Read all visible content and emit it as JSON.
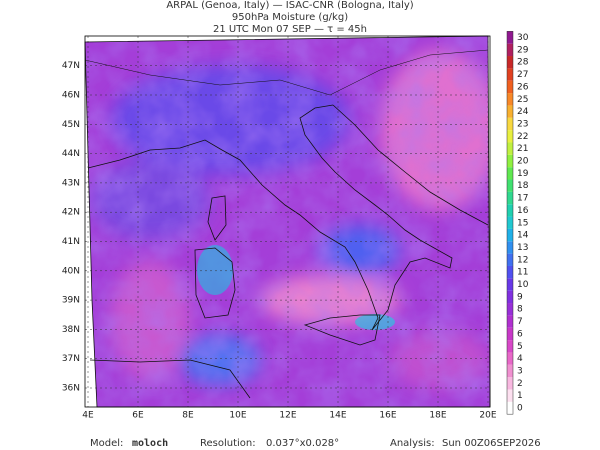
{
  "header": {
    "line1": "ARPAL (Genoa, Italy)  —  ISAC-CNR (Bologna, Italy)",
    "line2": "950hPa Moisture (g/kg)",
    "line3": "21 UTC Mon 07 SEP  —  τ = 45h"
  },
  "map": {
    "lat_labels": [
      "36N",
      "37N",
      "38N",
      "39N",
      "40N",
      "41N",
      "42N",
      "43N",
      "44N",
      "45N",
      "46N",
      "47N"
    ],
    "lon_labels": [
      "4E",
      "6E",
      "8E",
      "10E",
      "12E",
      "14E",
      "16E",
      "18E",
      "20E"
    ]
  },
  "colorbar": {
    "levels": [
      0,
      1,
      2,
      3,
      4,
      5,
      6,
      7,
      8,
      9,
      10,
      11,
      12,
      13,
      14,
      15,
      16,
      17,
      18,
      19,
      20,
      21,
      22,
      23,
      24,
      25,
      26,
      27,
      28,
      29,
      30
    ],
    "colors": [
      "#ffffff",
      "#fde0f0",
      "#f8b8e0",
      "#f090d0",
      "#e868c8",
      "#d848c8",
      "#c838c8",
      "#b030d0",
      "#9830d8",
      "#8030e0",
      "#6838e8",
      "#5050f0",
      "#4070f0",
      "#3090f0",
      "#20b0e8",
      "#20c8d0",
      "#20d0b0",
      "#30d890",
      "#40e070",
      "#60e850",
      "#90f040",
      "#c0f040",
      "#e8f040",
      "#f8d840",
      "#f8b030",
      "#f88828",
      "#f06020",
      "#e04020",
      "#c82828",
      "#b02060",
      "#901890"
    ]
  },
  "footer": {
    "model_label": "Model:",
    "model": "moloch",
    "resolution_label": "Resolution:",
    "resolution": "0.037°x0.028°",
    "analysis_label": "Analysis:",
    "analysis": "Sun 00Z06SEP2026"
  }
}
